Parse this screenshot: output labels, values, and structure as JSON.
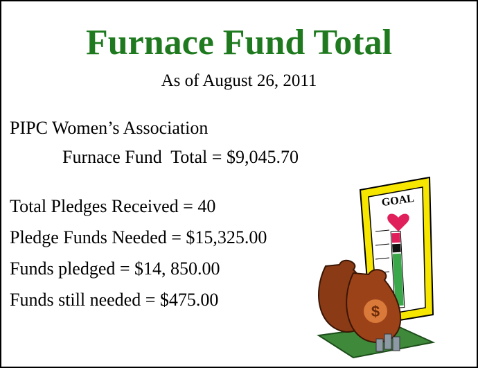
{
  "header": {
    "title": "Furnace Fund Total",
    "subtitle": "As of August 26, 2011"
  },
  "organization": "PIPC Women’s Association",
  "fund_total": "Furnace Fund  Total = $9,045.70",
  "items": [
    "Total Pledges Received = 40",
    "Pledge Funds Needed = $15,325.00",
    "Funds pledged = $14, 850.00",
    "Funds still needed = $475.00"
  ],
  "clipart": {
    "label": "GOAL"
  }
}
